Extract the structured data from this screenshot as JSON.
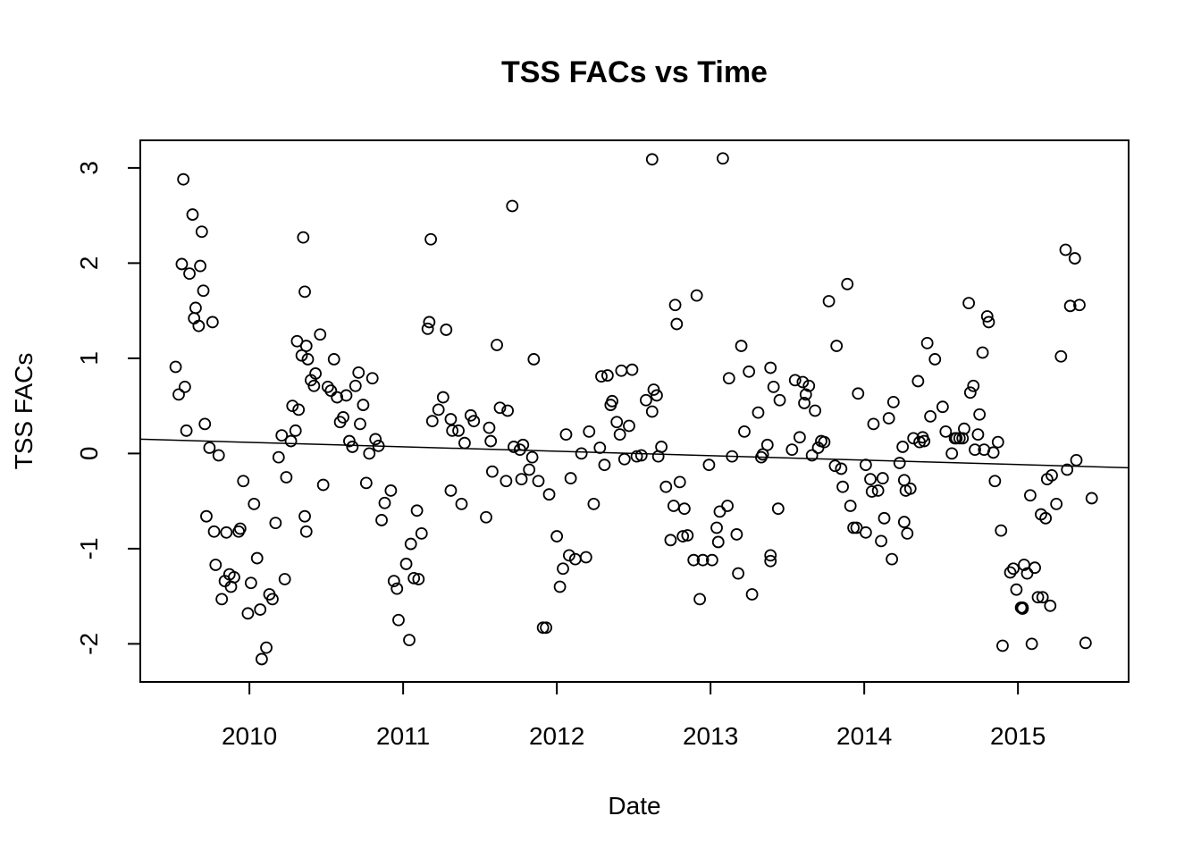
{
  "chart_data": {
    "type": "scatter",
    "title": "TSS FACs vs Time",
    "xlabel": "Date",
    "ylabel": "TSS FACs",
    "x_ticks": [
      "2010",
      "2011",
      "2012",
      "2013",
      "2014",
      "2015"
    ],
    "y_ticks": [
      "-2",
      "-1",
      "0",
      "1",
      "2",
      "3"
    ],
    "xlim": [
      2009.29,
      2015.72
    ],
    "ylim": [
      -2.4,
      3.29
    ],
    "grid": false,
    "legend": "none",
    "marker": "open-circle",
    "colors": {
      "points": "#000000",
      "trend": "#000000",
      "frame": "#000000"
    },
    "trend_line": {
      "x": [
        2009.29,
        2015.72
      ],
      "y": [
        0.15,
        -0.15
      ]
    },
    "points": [
      [
        2009.52,
        0.91
      ],
      [
        2009.54,
        0.62
      ],
      [
        2009.56,
        1.99
      ],
      [
        2009.57,
        2.88
      ],
      [
        2009.58,
        0.7
      ],
      [
        2009.59,
        0.24
      ],
      [
        2009.61,
        1.89
      ],
      [
        2009.63,
        2.51
      ],
      [
        2009.64,
        1.42
      ],
      [
        2009.65,
        1.53
      ],
      [
        2009.67,
        1.34
      ],
      [
        2009.68,
        1.97
      ],
      [
        2009.69,
        2.33
      ],
      [
        2009.7,
        1.71
      ],
      [
        2009.71,
        0.31
      ],
      [
        2009.72,
        -0.66
      ],
      [
        2009.74,
        0.06
      ],
      [
        2009.76,
        1.38
      ],
      [
        2009.77,
        -0.82
      ],
      [
        2009.78,
        -1.17
      ],
      [
        2009.8,
        -0.02
      ],
      [
        2009.82,
        -1.53
      ],
      [
        2009.84,
        -1.34
      ],
      [
        2009.85,
        -0.83
      ],
      [
        2009.87,
        -1.27
      ],
      [
        2009.88,
        -1.4
      ],
      [
        2009.9,
        -1.3
      ],
      [
        2009.93,
        -0.82
      ],
      [
        2009.94,
        -0.79
      ],
      [
        2009.96,
        -0.29
      ],
      [
        2009.99,
        -1.68
      ],
      [
        2010.01,
        -1.36
      ],
      [
        2010.03,
        -0.53
      ],
      [
        2010.05,
        -1.1
      ],
      [
        2010.07,
        -1.64
      ],
      [
        2010.08,
        -2.16
      ],
      [
        2010.11,
        -2.04
      ],
      [
        2010.13,
        -1.48
      ],
      [
        2010.15,
        -1.53
      ],
      [
        2010.17,
        -0.73
      ],
      [
        2010.19,
        -0.04
      ],
      [
        2010.21,
        0.19
      ],
      [
        2010.23,
        -1.32
      ],
      [
        2010.24,
        -0.25
      ],
      [
        2010.27,
        0.13
      ],
      [
        2010.28,
        0.5
      ],
      [
        2010.3,
        0.24
      ],
      [
        2010.31,
        1.18
      ],
      [
        2010.32,
        0.46
      ],
      [
        2010.34,
        1.03
      ],
      [
        2010.35,
        2.27
      ],
      [
        2010.36,
        1.7
      ],
      [
        2010.37,
        1.13
      ],
      [
        2010.38,
        0.99
      ],
      [
        2010.36,
        -0.66
      ],
      [
        2010.37,
        -0.82
      ],
      [
        2010.4,
        0.77
      ],
      [
        2010.42,
        0.71
      ],
      [
        2010.43,
        0.84
      ],
      [
        2010.46,
        1.25
      ],
      [
        2010.48,
        -0.33
      ],
      [
        2010.51,
        0.7
      ],
      [
        2010.53,
        0.66
      ],
      [
        2010.55,
        0.99
      ],
      [
        2010.57,
        0.59
      ],
      [
        2010.59,
        0.33
      ],
      [
        2010.61,
        0.38
      ],
      [
        2010.63,
        0.61
      ],
      [
        2010.65,
        0.13
      ],
      [
        2010.67,
        0.07
      ],
      [
        2010.69,
        0.71
      ],
      [
        2010.71,
        0.85
      ],
      [
        2010.72,
        0.31
      ],
      [
        2010.74,
        0.51
      ],
      [
        2010.76,
        -0.31
      ],
      [
        2010.78,
        0.0
      ],
      [
        2010.8,
        0.79
      ],
      [
        2010.82,
        0.15
      ],
      [
        2010.84,
        0.08
      ],
      [
        2010.86,
        -0.7
      ],
      [
        2010.88,
        -0.52
      ],
      [
        2010.92,
        -0.39
      ],
      [
        2010.94,
        -1.34
      ],
      [
        2010.96,
        -1.42
      ],
      [
        2010.97,
        -1.75
      ],
      [
        2011.02,
        -1.16
      ],
      [
        2011.04,
        -1.96
      ],
      [
        2011.05,
        -0.95
      ],
      [
        2011.07,
        -1.31
      ],
      [
        2011.09,
        -0.6
      ],
      [
        2011.1,
        -1.32
      ],
      [
        2011.12,
        -0.84
      ],
      [
        2011.16,
        1.31
      ],
      [
        2011.17,
        1.38
      ],
      [
        2011.18,
        2.25
      ],
      [
        2011.19,
        0.34
      ],
      [
        2011.23,
        0.46
      ],
      [
        2011.26,
        0.59
      ],
      [
        2011.28,
        1.3
      ],
      [
        2011.31,
        0.36
      ],
      [
        2011.31,
        -0.39
      ],
      [
        2011.32,
        0.24
      ],
      [
        2011.36,
        0.24
      ],
      [
        2011.38,
        -0.53
      ],
      [
        2011.4,
        0.11
      ],
      [
        2011.44,
        0.4
      ],
      [
        2011.46,
        0.34
      ],
      [
        2011.54,
        -0.67
      ],
      [
        2011.56,
        0.27
      ],
      [
        2011.57,
        0.13
      ],
      [
        2011.58,
        -0.19
      ],
      [
        2011.61,
        1.14
      ],
      [
        2011.63,
        0.48
      ],
      [
        2011.67,
        -0.29
      ],
      [
        2011.68,
        0.45
      ],
      [
        2011.71,
        2.6
      ],
      [
        2011.72,
        0.07
      ],
      [
        2011.76,
        0.04
      ],
      [
        2011.77,
        -0.27
      ],
      [
        2011.78,
        0.09
      ],
      [
        2011.82,
        -0.17
      ],
      [
        2011.84,
        -0.04
      ],
      [
        2011.85,
        0.99
      ],
      [
        2011.88,
        -0.29
      ],
      [
        2011.91,
        -1.83
      ],
      [
        2011.93,
        -1.83
      ],
      [
        2011.95,
        -0.43
      ],
      [
        2012.0,
        -0.87
      ],
      [
        2012.02,
        -1.4
      ],
      [
        2012.04,
        -1.21
      ],
      [
        2012.06,
        0.2
      ],
      [
        2012.08,
        -1.07
      ],
      [
        2012.09,
        -0.26
      ],
      [
        2012.12,
        -1.11
      ],
      [
        2012.16,
        0.0
      ],
      [
        2012.19,
        -1.09
      ],
      [
        2012.21,
        0.23
      ],
      [
        2012.24,
        -0.53
      ],
      [
        2012.28,
        0.06
      ],
      [
        2012.29,
        0.81
      ],
      [
        2012.31,
        -0.12
      ],
      [
        2012.33,
        0.82
      ],
      [
        2012.35,
        0.51
      ],
      [
        2012.36,
        0.55
      ],
      [
        2012.39,
        0.33
      ],
      [
        2012.41,
        0.2
      ],
      [
        2012.42,
        0.87
      ],
      [
        2012.44,
        -0.06
      ],
      [
        2012.47,
        0.29
      ],
      [
        2012.49,
        0.88
      ],
      [
        2012.52,
        -0.03
      ],
      [
        2012.55,
        -0.02
      ],
      [
        2012.58,
        0.56
      ],
      [
        2012.62,
        3.09
      ],
      [
        2012.63,
        0.67
      ],
      [
        2012.62,
        0.44
      ],
      [
        2012.65,
        0.61
      ],
      [
        2012.66,
        -0.03
      ],
      [
        2012.68,
        0.07
      ],
      [
        2012.71,
        -0.35
      ],
      [
        2012.74,
        -0.91
      ],
      [
        2012.76,
        -0.55
      ],
      [
        2012.77,
        1.56
      ],
      [
        2012.78,
        1.36
      ],
      [
        2012.8,
        -0.3
      ],
      [
        2012.82,
        -0.87
      ],
      [
        2012.83,
        -0.58
      ],
      [
        2012.85,
        -0.86
      ],
      [
        2012.89,
        -1.12
      ],
      [
        2012.91,
        1.66
      ],
      [
        2012.93,
        -1.53
      ],
      [
        2012.95,
        -1.12
      ],
      [
        2012.99,
        -0.12
      ],
      [
        2013.01,
        -1.12
      ],
      [
        2013.04,
        -0.78
      ],
      [
        2013.05,
        -0.93
      ],
      [
        2013.06,
        -0.61
      ],
      [
        2013.08,
        3.1
      ],
      [
        2013.11,
        -0.55
      ],
      [
        2013.12,
        0.79
      ],
      [
        2013.14,
        -0.03
      ],
      [
        2013.17,
        -0.85
      ],
      [
        2013.18,
        -1.26
      ],
      [
        2013.2,
        1.13
      ],
      [
        2013.22,
        0.23
      ],
      [
        2013.25,
        0.86
      ],
      [
        2013.27,
        -1.48
      ],
      [
        2013.31,
        0.43
      ],
      [
        2013.33,
        -0.04
      ],
      [
        2013.34,
        -0.01
      ],
      [
        2013.37,
        0.09
      ],
      [
        2013.39,
        0.9
      ],
      [
        2013.39,
        -1.07
      ],
      [
        2013.39,
        -1.13
      ],
      [
        2013.41,
        0.7
      ],
      [
        2013.44,
        -0.58
      ],
      [
        2013.45,
        0.56
      ],
      [
        2013.53,
        0.04
      ],
      [
        2013.55,
        0.77
      ],
      [
        2013.58,
        0.17
      ],
      [
        2013.6,
        0.75
      ],
      [
        2013.61,
        0.53
      ],
      [
        2013.62,
        0.62
      ],
      [
        2013.64,
        0.71
      ],
      [
        2013.66,
        -0.02
      ],
      [
        2013.68,
        0.45
      ],
      [
        2013.7,
        0.06
      ],
      [
        2013.72,
        0.13
      ],
      [
        2013.74,
        0.12
      ],
      [
        2013.77,
        1.6
      ],
      [
        2013.81,
        -0.13
      ],
      [
        2013.82,
        1.13
      ],
      [
        2013.85,
        -0.16
      ],
      [
        2013.86,
        -0.35
      ],
      [
        2013.89,
        1.78
      ],
      [
        2013.91,
        -0.55
      ],
      [
        2013.93,
        -0.78
      ],
      [
        2013.96,
        0.63
      ],
      [
        2013.95,
        -0.78
      ],
      [
        2014.01,
        -0.12
      ],
      [
        2014.01,
        -0.83
      ],
      [
        2014.04,
        -0.27
      ],
      [
        2014.05,
        -0.4
      ],
      [
        2014.06,
        0.31
      ],
      [
        2014.09,
        -0.39
      ],
      [
        2014.11,
        -0.92
      ],
      [
        2014.12,
        -0.26
      ],
      [
        2014.13,
        -0.68
      ],
      [
        2014.16,
        0.37
      ],
      [
        2014.18,
        -1.11
      ],
      [
        2014.19,
        0.54
      ],
      [
        2014.23,
        -0.1
      ],
      [
        2014.25,
        0.07
      ],
      [
        2014.26,
        -0.28
      ],
      [
        2014.27,
        -0.39
      ],
      [
        2014.26,
        -0.72
      ],
      [
        2014.28,
        -0.84
      ],
      [
        2014.3,
        -0.37
      ],
      [
        2014.32,
        0.16
      ],
      [
        2014.35,
        0.76
      ],
      [
        2014.36,
        0.12
      ],
      [
        2014.38,
        0.17
      ],
      [
        2014.39,
        0.13
      ],
      [
        2014.41,
        1.16
      ],
      [
        2014.43,
        0.39
      ],
      [
        2014.46,
        0.99
      ],
      [
        2014.51,
        0.49
      ],
      [
        2014.53,
        0.23
      ],
      [
        2014.57,
        0.0
      ],
      [
        2014.59,
        0.16
      ],
      [
        2014.6,
        0.16
      ],
      [
        2014.62,
        0.16
      ],
      [
        2014.64,
        0.16
      ],
      [
        2014.65,
        0.26
      ],
      [
        2014.68,
        1.58
      ],
      [
        2014.69,
        0.64
      ],
      [
        2014.71,
        0.71
      ],
      [
        2014.72,
        0.04
      ],
      [
        2014.74,
        0.2
      ],
      [
        2014.75,
        0.41
      ],
      [
        2014.77,
        1.06
      ],
      [
        2014.78,
        0.04
      ],
      [
        2014.8,
        1.44
      ],
      [
        2014.81,
        1.38
      ],
      [
        2014.84,
        0.01
      ],
      [
        2014.85,
        -0.29
      ],
      [
        2014.87,
        0.12
      ],
      [
        2014.89,
        -0.81
      ],
      [
        2014.9,
        -2.02
      ],
      [
        2014.95,
        -1.25
      ],
      [
        2014.97,
        -1.21
      ],
      [
        2014.99,
        -1.43
      ],
      [
        2015.02,
        -1.62
      ],
      [
        2015.03,
        -1.62
      ],
      [
        2015.03,
        -1.63
      ],
      [
        2015.04,
        -1.17
      ],
      [
        2015.06,
        -1.26
      ],
      [
        2015.08,
        -0.44
      ],
      [
        2015.09,
        -2.0
      ],
      [
        2015.11,
        -1.2
      ],
      [
        2015.13,
        -1.51
      ],
      [
        2015.15,
        -0.64
      ],
      [
        2015.16,
        -1.51
      ],
      [
        2015.18,
        -0.68
      ],
      [
        2015.19,
        -0.27
      ],
      [
        2015.21,
        -1.6
      ],
      [
        2015.22,
        -0.23
      ],
      [
        2015.25,
        -0.53
      ],
      [
        2015.28,
        1.02
      ],
      [
        2015.31,
        2.14
      ],
      [
        2015.32,
        -0.17
      ],
      [
        2015.34,
        1.55
      ],
      [
        2015.37,
        2.05
      ],
      [
        2015.38,
        -0.07
      ],
      [
        2015.4,
        1.56
      ],
      [
        2015.44,
        -1.99
      ],
      [
        2015.48,
        -0.47
      ]
    ]
  }
}
